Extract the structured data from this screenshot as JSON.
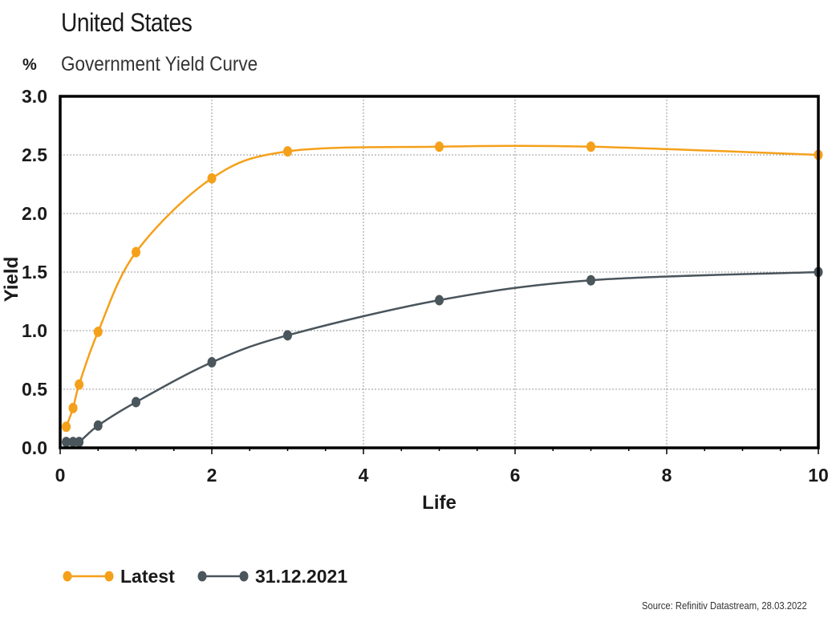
{
  "header": {
    "title": "United States",
    "subtitle": "Government Yield Curve",
    "unit_label": "%"
  },
  "source": "Source: Refinitiv Datastream, 28.03.2022",
  "colors": {
    "latest": "#F5A01A",
    "previous": "#4A555C",
    "grid": "#9a9a9a",
    "axis": "#000000"
  },
  "chart_data": {
    "type": "line",
    "title": "Government Yield Curve",
    "xlabel": "Life",
    "ylabel": "Yield",
    "xlim": [
      0,
      10
    ],
    "ylim": [
      0,
      3
    ],
    "xticks": [
      0,
      2,
      4,
      6,
      8,
      10
    ],
    "yticks": [
      0.0,
      0.5,
      1.0,
      1.5,
      2.0,
      2.5,
      3.0
    ],
    "xtick_labels": [
      "0",
      "2",
      "4",
      "6",
      "8",
      "10"
    ],
    "ytick_labels": [
      "0.0",
      "0.5",
      "1.0",
      "1.5",
      "2.0",
      "2.5",
      "3.0"
    ],
    "grid": true,
    "legend_position": "bottom-left",
    "series": [
      {
        "name": "Latest",
        "color": "#F5A01A",
        "x": [
          0.08,
          0.17,
          0.25,
          0.5,
          1,
          2,
          3,
          5,
          7,
          10
        ],
        "values": [
          0.18,
          0.34,
          0.54,
          0.99,
          1.67,
          2.3,
          2.53,
          2.57,
          2.57,
          2.5
        ]
      },
      {
        "name": "31.12.2021",
        "color": "#4A555C",
        "x": [
          0.08,
          0.17,
          0.25,
          0.5,
          1,
          2,
          3,
          5,
          7,
          10
        ],
        "values": [
          0.05,
          0.05,
          0.05,
          0.19,
          0.39,
          0.73,
          0.96,
          1.26,
          1.43,
          1.5
        ]
      }
    ]
  }
}
